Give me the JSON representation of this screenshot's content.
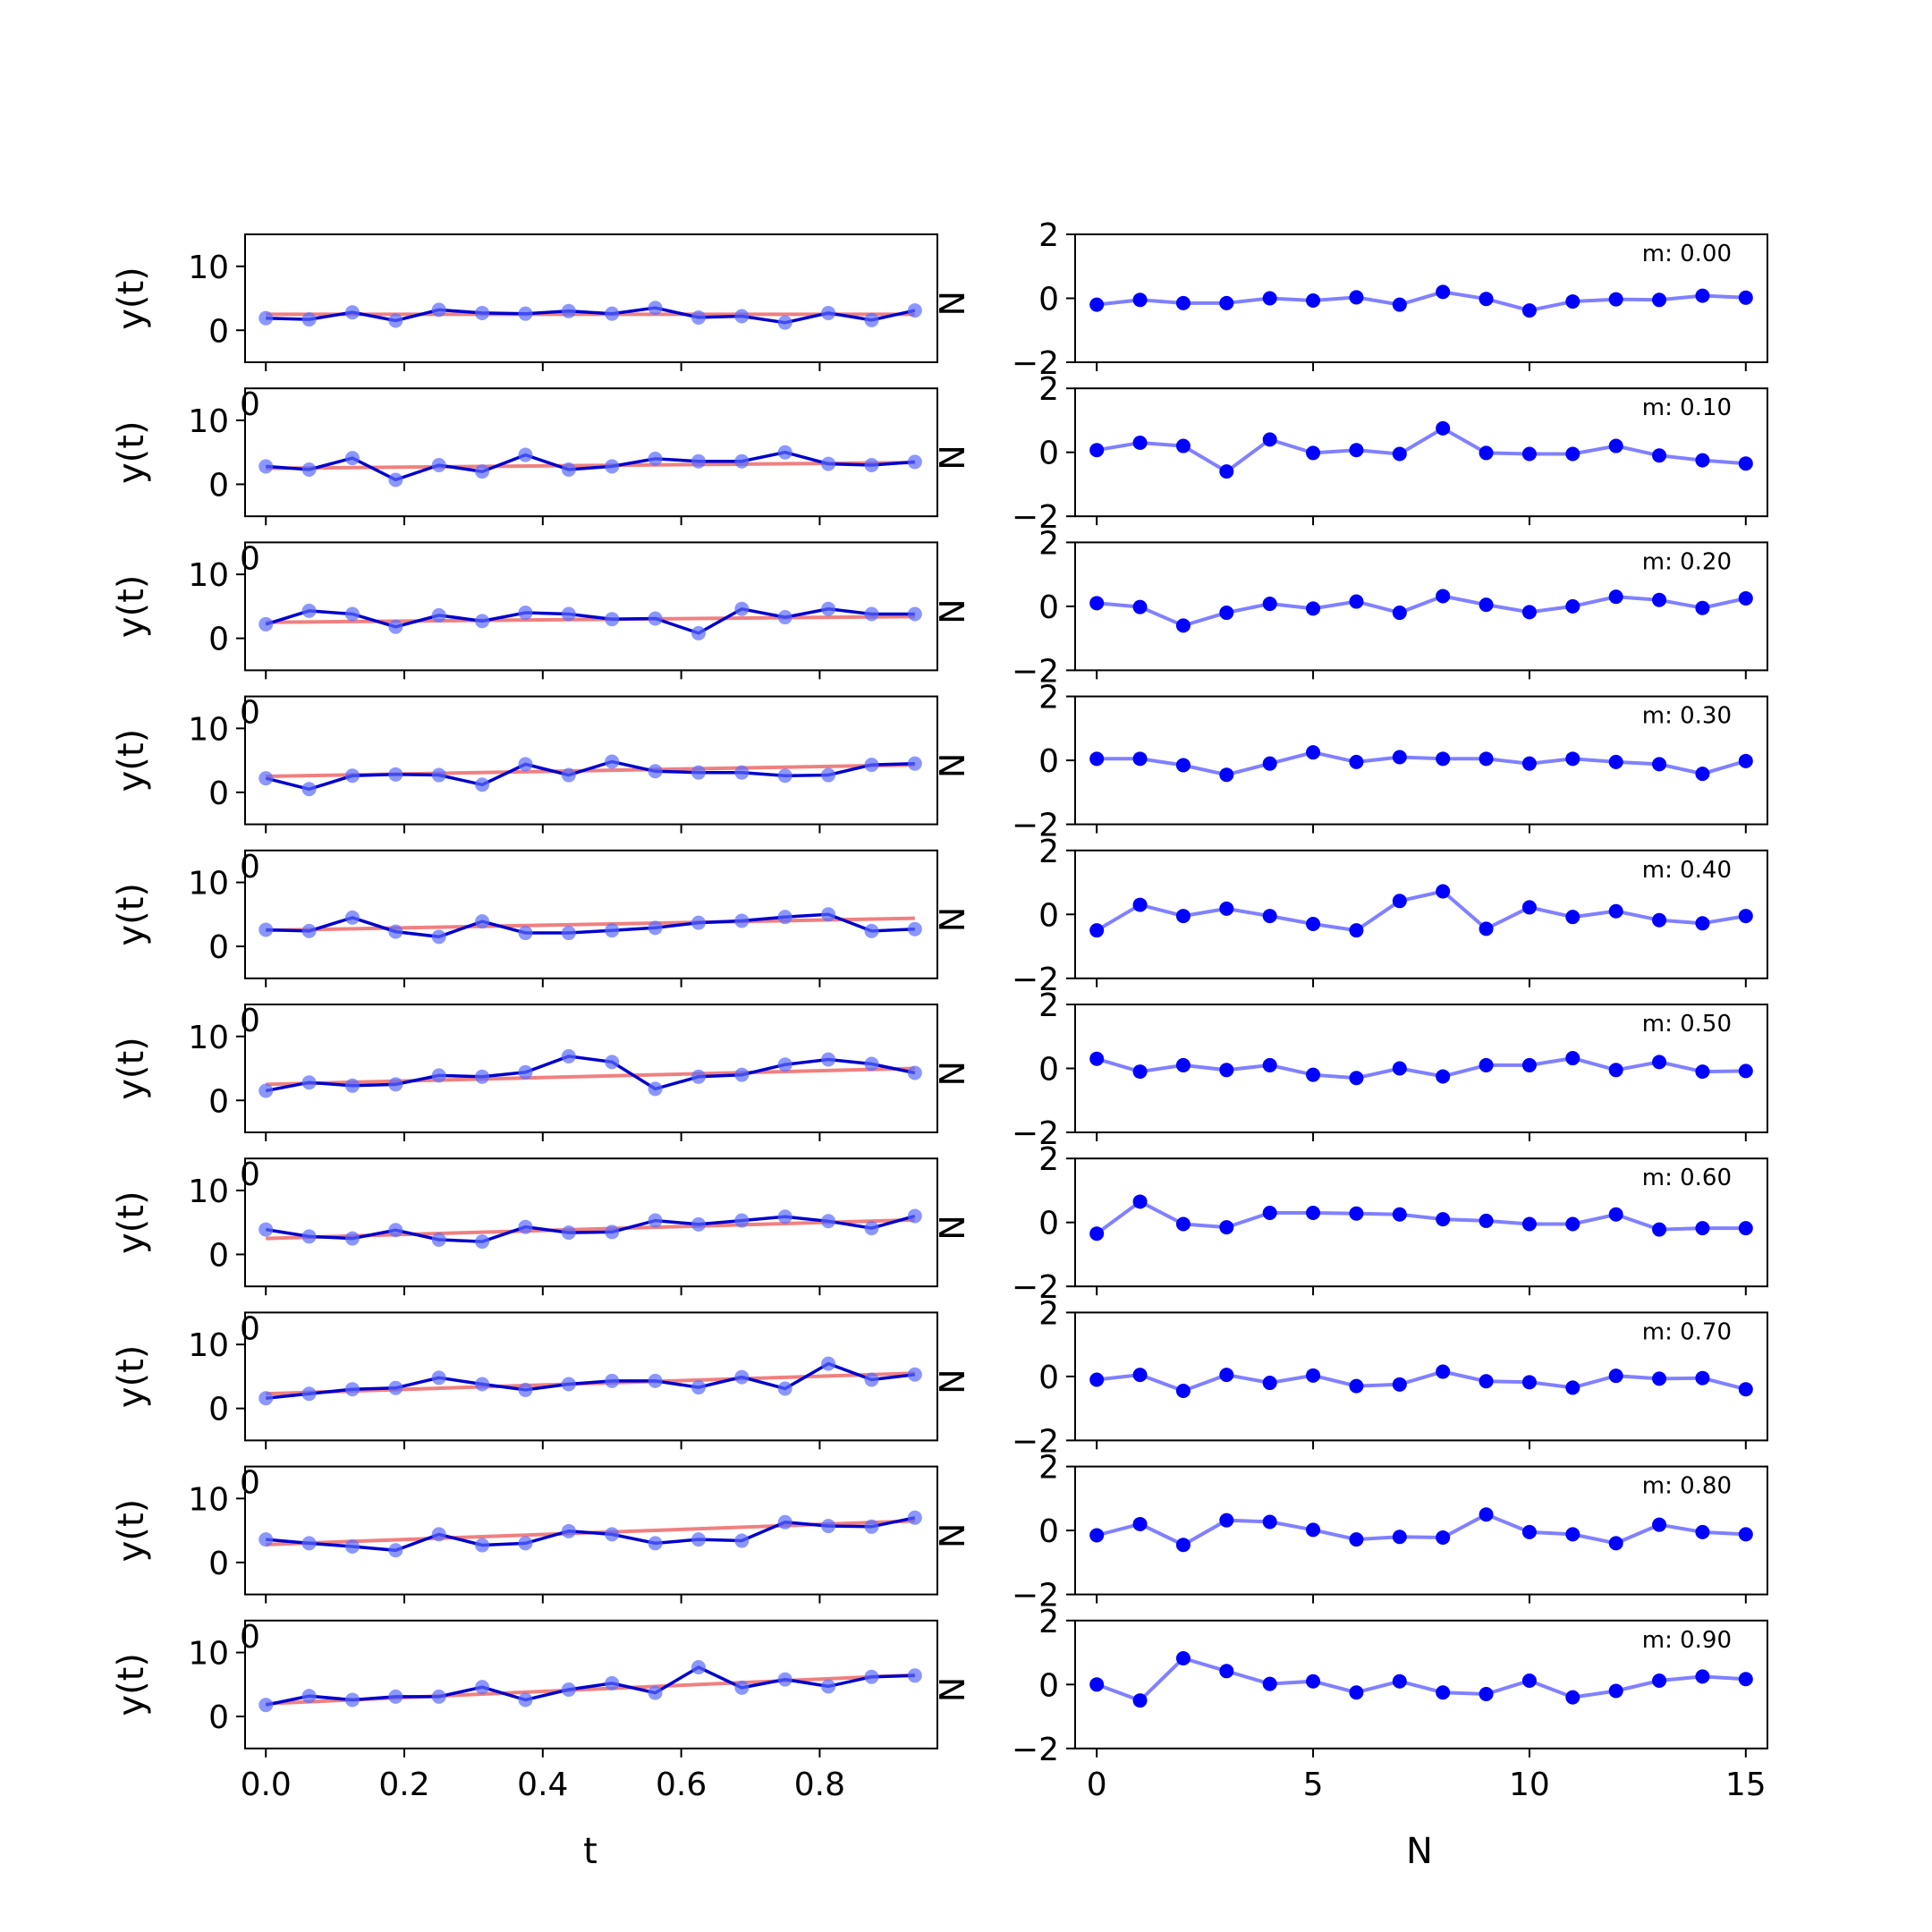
{
  "figure": {
    "left_xlabel": "t",
    "right_xlabel": "N",
    "left_ylabel": "y(t)",
    "right_ylabel_clipped": "N"
  },
  "colors": {
    "fit_line": "#f08080",
    "data_line": "#0000cc",
    "marker": "#5a6bff",
    "resid": "#0000ff",
    "resid_line": "#8080ff"
  },
  "chart_data": [
    {
      "type": "line",
      "panel": "left",
      "layout": "10 rows stacked",
      "x": [
        0.0,
        0.0625,
        0.125,
        0.1875,
        0.25,
        0.3125,
        0.375,
        0.4375,
        0.5,
        0.5625,
        0.625,
        0.6875,
        0.75,
        0.8125,
        0.875,
        0.9375
      ],
      "xlabel": "t",
      "ylabel": "y(t)",
      "xlim": [
        -0.03,
        0.97
      ],
      "ylim": [
        -5,
        15
      ],
      "xticks": [
        "0.0",
        "0.2",
        "0.4",
        "0.6",
        "0.8"
      ],
      "yticks": [
        "0",
        "10"
      ],
      "rows": [
        {
          "m": 0.0,
          "fit": [
            2.5,
            2.5
          ],
          "y": [
            1.9,
            1.7,
            2.8,
            1.5,
            3.2,
            2.7,
            2.6,
            3.0,
            2.6,
            3.5,
            2.0,
            2.2,
            1.2,
            2.7,
            1.6,
            3.1
          ]
        },
        {
          "m": 0.1,
          "fit": [
            2.5,
            3.4
          ],
          "y": [
            2.8,
            2.3,
            4.1,
            0.7,
            3.0,
            2.0,
            4.6,
            2.3,
            2.8,
            4.0,
            3.6,
            3.6,
            5.0,
            3.2,
            3.0,
            3.5
          ]
        },
        {
          "m": 0.2,
          "fit": [
            2.5,
            3.4
          ],
          "y": [
            2.2,
            4.3,
            3.8,
            1.8,
            3.6,
            2.7,
            4.0,
            3.8,
            3.0,
            3.1,
            0.8,
            4.6,
            3.3,
            4.6,
            3.8,
            3.8
          ]
        },
        {
          "m": 0.3,
          "fit": [
            2.5,
            4.3
          ],
          "y": [
            2.2,
            0.5,
            2.6,
            2.8,
            2.7,
            1.2,
            4.4,
            2.7,
            4.8,
            3.3,
            3.1,
            3.1,
            2.6,
            2.7,
            4.3,
            4.5
          ]
        },
        {
          "m": 0.4,
          "fit": [
            2.5,
            4.4
          ],
          "y": [
            2.6,
            2.4,
            4.5,
            2.3,
            1.5,
            3.9,
            2.1,
            2.1,
            2.5,
            2.9,
            3.7,
            4.0,
            4.6,
            5.0,
            2.4,
            2.7
          ]
        },
        {
          "m": 0.5,
          "fit": [
            2.5,
            5.0
          ],
          "y": [
            1.5,
            2.8,
            2.3,
            2.5,
            3.9,
            3.7,
            4.4,
            6.9,
            6.0,
            1.8,
            3.7,
            4.0,
            5.6,
            6.4,
            5.7,
            4.3
          ]
        },
        {
          "m": 0.6,
          "fit": [
            2.5,
            5.4
          ],
          "y": [
            3.9,
            2.8,
            2.5,
            3.8,
            2.3,
            2.0,
            4.3,
            3.4,
            3.5,
            5.3,
            4.7,
            5.3,
            5.9,
            5.2,
            4.1,
            6.0
          ]
        },
        {
          "m": 0.7,
          "fit": [
            2.3,
            5.5
          ],
          "y": [
            1.6,
            2.3,
            3.0,
            3.2,
            4.8,
            3.8,
            2.9,
            3.8,
            4.3,
            4.3,
            3.3,
            4.9,
            3.1,
            7.0,
            4.5,
            5.3
          ]
        },
        {
          "m": 0.8,
          "fit": [
            2.8,
            6.5
          ],
          "y": [
            3.6,
            3.0,
            2.5,
            1.9,
            4.4,
            2.7,
            3.0,
            4.9,
            4.4,
            3.0,
            3.6,
            3.4,
            6.3,
            5.7,
            5.6,
            7.0
          ]
        },
        {
          "m": 0.9,
          "fit": [
            2.0,
            6.5
          ],
          "y": [
            1.8,
            3.2,
            2.6,
            3.1,
            3.1,
            4.6,
            2.6,
            4.2,
            5.2,
            3.7,
            7.7,
            4.5,
            5.8,
            4.7,
            6.2,
            6.4
          ]
        }
      ]
    },
    {
      "type": "line",
      "panel": "right",
      "layout": "10 rows stacked",
      "x": [
        0,
        1,
        2,
        3,
        4,
        5,
        6,
        7,
        8,
        9,
        10,
        11,
        12,
        13,
        14,
        15
      ],
      "xlabel": "N",
      "xlim": [
        -0.5,
        15.5
      ],
      "ylim": [
        -2,
        2
      ],
      "xticks": [
        "0",
        "5",
        "10",
        "15"
      ],
      "yticks": [
        "−2",
        "0",
        "2"
      ],
      "rows": [
        {
          "annotation": "m: 0.00",
          "y": [
            -0.2,
            -0.05,
            -0.15,
            -0.15,
            0.0,
            -0.07,
            0.03,
            -0.2,
            0.2,
            -0.02,
            -0.38,
            -0.1,
            -0.03,
            -0.05,
            0.08,
            0.02
          ]
        },
        {
          "annotation": "m: 0.10",
          "y": [
            0.07,
            0.3,
            0.2,
            -0.6,
            0.4,
            -0.02,
            0.07,
            -0.05,
            0.75,
            -0.02,
            -0.05,
            -0.05,
            0.2,
            -0.1,
            -0.25,
            -0.35
          ]
        },
        {
          "annotation": "m: 0.20",
          "y": [
            0.1,
            -0.02,
            -0.6,
            -0.2,
            0.08,
            -0.07,
            0.15,
            -0.2,
            0.32,
            0.05,
            -0.18,
            0.0,
            0.3,
            0.2,
            -0.05,
            0.25
          ]
        },
        {
          "annotation": "m: 0.30",
          "y": [
            0.05,
            0.05,
            -0.15,
            -0.45,
            -0.1,
            0.25,
            -0.05,
            0.1,
            0.05,
            0.05,
            -0.1,
            0.05,
            -0.05,
            -0.12,
            -0.42,
            -0.02
          ]
        },
        {
          "annotation": "m: 0.40",
          "y": [
            -0.5,
            0.3,
            -0.05,
            0.18,
            -0.05,
            -0.3,
            -0.5,
            0.42,
            0.72,
            -0.45,
            0.22,
            -0.08,
            0.1,
            -0.18,
            -0.28,
            -0.05
          ]
        },
        {
          "annotation": "m: 0.50",
          "y": [
            0.3,
            -0.1,
            0.1,
            -0.05,
            0.1,
            -0.2,
            -0.3,
            0.0,
            -0.25,
            0.1,
            0.1,
            0.32,
            -0.05,
            0.2,
            -0.1,
            -0.08
          ]
        },
        {
          "annotation": "m: 0.60",
          "y": [
            -0.35,
            0.65,
            -0.05,
            -0.15,
            0.3,
            0.3,
            0.28,
            0.25,
            0.1,
            0.05,
            -0.05,
            -0.05,
            0.25,
            -0.22,
            -0.18,
            -0.18
          ]
        },
        {
          "annotation": "m: 0.70",
          "y": [
            -0.1,
            0.05,
            -0.45,
            0.05,
            -0.2,
            0.03,
            -0.3,
            -0.25,
            0.15,
            -0.15,
            -0.18,
            -0.35,
            0.02,
            -0.07,
            -0.05,
            -0.4
          ]
        },
        {
          "annotation": "m: 0.80",
          "y": [
            -0.15,
            0.2,
            -0.45,
            0.32,
            0.27,
            0.02,
            -0.28,
            -0.2,
            -0.22,
            0.5,
            -0.05,
            -0.12,
            -0.4,
            0.18,
            -0.05,
            -0.12
          ]
        },
        {
          "annotation": "m: 0.90",
          "y": [
            0.0,
            -0.5,
            0.82,
            0.42,
            0.02,
            0.1,
            -0.25,
            0.1,
            -0.25,
            -0.3,
            0.12,
            -0.4,
            -0.2,
            0.12,
            0.25,
            0.17
          ]
        }
      ]
    }
  ]
}
